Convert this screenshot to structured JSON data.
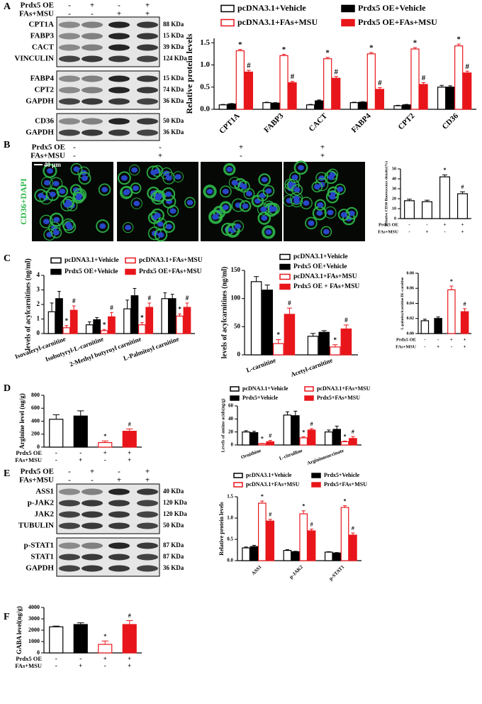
{
  "panel_labels": [
    "A",
    "B",
    "C",
    "D",
    "E",
    "F"
  ],
  "blots": [
    {
      "conditions": [
        {
          "name": "Prdx5 OE",
          "signs": [
            "-",
            "+",
            "-",
            "+"
          ]
        },
        {
          "name": "FAs+MSU",
          "signs": [
            "-",
            "-",
            "+",
            "+"
          ]
        }
      ],
      "groups": [
        [
          {
            "protein": "CPT1A",
            "size": "88 KDa"
          },
          {
            "protein": "FABP3",
            "size": "15 KDa"
          },
          {
            "protein": "CACT",
            "size": "39 KDa"
          },
          {
            "protein": "VINCULIN",
            "size": "124 KDa"
          }
        ],
        [
          {
            "protein": "FABP4",
            "size": "15 KDa"
          },
          {
            "protein": "CPT2",
            "size": "74 KDa"
          },
          {
            "protein": "GAPDH",
            "size": "36 KDa"
          }
        ],
        [
          {
            "protein": "CD36",
            "size": "50 KDa"
          },
          {
            "protein": "GAPDH",
            "size": "36 KDa"
          }
        ]
      ]
    },
    {
      "conditions": [
        {
          "name": "Prdx5 OE",
          "signs": [
            "-",
            "+",
            "-",
            "+"
          ]
        },
        {
          "name": "FAs+MSU",
          "signs": [
            "-",
            "-",
            "+",
            "+"
          ]
        }
      ],
      "groups": [
        [
          {
            "protein": "ASS1",
            "size": "40 KDa"
          },
          {
            "protein": "p-JAK2",
            "size": "120 KDa"
          },
          {
            "protein": "JAK2",
            "size": "120 KDa"
          },
          {
            "protein": "TUBULIN",
            "size": "50 KDa"
          }
        ],
        [
          {
            "protein": "p-STAT1",
            "size": "87 KDa"
          },
          {
            "protein": "STAT1",
            "size": "87 KDa"
          },
          {
            "protein": "GAPDH",
            "size": "36 KDa"
          }
        ]
      ]
    }
  ],
  "images": {
    "conditions": [
      {
        "name": "Prdx5 OE",
        "signs": [
          "-",
          "-",
          "+",
          "+"
        ]
      },
      {
        "name": "FAs+MSU",
        "signs": [
          "-",
          "+",
          "-",
          "+"
        ]
      }
    ],
    "stain": "CD36+DAPI",
    "scale": "40 μm"
  },
  "chart_data": [
    {
      "type": "bar",
      "ylabel": "Relative protein levels",
      "categories": [
        "CPT1A",
        "FABP3",
        "CACT",
        "FABP4",
        "CPT2",
        "CD36"
      ],
      "series": [
        {
          "name": "pcDNA3.1+Vehicle",
          "color": "#000000",
          "hollow": true,
          "values": [
            0.1,
            0.15,
            0.1,
            0.15,
            0.08,
            0.5
          ],
          "errors": [
            0.01,
            0.01,
            0.01,
            0.01,
            0.01,
            0.04
          ]
        },
        {
          "name": "Prdx5 OE+Vehicle",
          "color": "#000000",
          "hollow": false,
          "values": [
            0.12,
            0.14,
            0.19,
            0.16,
            0.1,
            0.5
          ],
          "errors": [
            0.01,
            0.01,
            0.02,
            0.01,
            0.01,
            0.03
          ]
        },
        {
          "name": "pcDNA3.1+FAs+MSU",
          "color": "#e8161b",
          "hollow": true,
          "values": [
            1.32,
            1.21,
            1.14,
            1.25,
            1.36,
            1.43
          ],
          "errors": [
            0.03,
            0.03,
            0.03,
            0.03,
            0.03,
            0.04
          ],
          "annotations": [
            "*",
            "*",
            "*",
            "*",
            "*",
            "*"
          ]
        },
        {
          "name": "Prdx5 OE+FAs+MSU",
          "color": "#e8161b",
          "hollow": false,
          "values": [
            0.84,
            0.6,
            0.7,
            0.45,
            0.56,
            0.82
          ],
          "errors": [
            0.04,
            0.03,
            0.04,
            0.04,
            0.04,
            0.04
          ],
          "annotations": [
            "#",
            "#",
            "#",
            "#",
            "#",
            "#"
          ]
        }
      ],
      "ylim": [
        0,
        1.6
      ],
      "yticks": [
        {
          "value": 0,
          "label": "0.0"
        },
        {
          "value": 0.5,
          "label": "0.5"
        },
        {
          "value": 1,
          "label": "1.0"
        },
        {
          "value": 1.5,
          "label": "1.5"
        }
      ]
    },
    {
      "type": "bar",
      "ylabel": "Relative CD36 fluorescence density(%)",
      "values": [
        18,
        17,
        42,
        25
      ],
      "errors": [
        1.5,
        1.5,
        2,
        2
      ],
      "colors": [
        "#000000",
        "#000000",
        "#000000",
        "#000000"
      ],
      "hollow": [
        true,
        true,
        true,
        true
      ],
      "annotations": [
        null,
        null,
        "*",
        "#"
      ],
      "conditions": [
        {
          "name": "Prdx5 OE",
          "signs": [
            "-",
            "-",
            "+",
            "+"
          ]
        },
        {
          "name": "FAs+MSU",
          "signs": [
            "-",
            "+",
            "-",
            "+"
          ]
        }
      ],
      "ylim": [
        0,
        50
      ],
      "yticks": [
        0,
        10,
        20,
        30,
        40,
        50
      ]
    },
    {
      "type": "bar",
      "ylabel": "levels of acylcarnitines (ng/ml)",
      "categories": [
        "Isovaleryl-carnitine",
        "Isobutyryl-L-carnitine",
        "2-Methyl butyroyl carnitine",
        "L-Palmitoyl carnitine"
      ],
      "series": [
        {
          "name": "pcDNA3.1+Vehicle",
          "color": "#000000",
          "hollow": true,
          "values": [
            1.5,
            0.6,
            1.7,
            2.4
          ],
          "errors": [
            0.6,
            0.2,
            0.6,
            0.4
          ]
        },
        {
          "name": "Prdx5 OE+Vehicle",
          "color": "#000000",
          "hollow": false,
          "values": [
            2.4,
            0.95,
            2.6,
            2.4
          ],
          "errors": [
            0.5,
            0.15,
            0.5,
            0.3
          ]
        },
        {
          "name": "pcDNA3.1+FAs+MSU",
          "color": "#e8161b",
          "hollow": true,
          "values": [
            0.4,
            0.2,
            0.6,
            1.2
          ],
          "errors": [
            0.15,
            0.08,
            0.15,
            0.15
          ],
          "annotations": [
            "*",
            "*",
            "*",
            "*"
          ]
        },
        {
          "name": "Prdx5 OE+FAs+MSU",
          "color": "#e8161b",
          "hollow": false,
          "values": [
            1.6,
            1.15,
            1.8,
            1.8
          ],
          "errors": [
            0.3,
            0.3,
            0.3,
            0.3
          ],
          "annotations": [
            "#",
            "#",
            "#",
            "#"
          ]
        }
      ],
      "ylim": [
        0,
        4
      ],
      "yticks": [
        0,
        1,
        2,
        3,
        4
      ]
    },
    {
      "type": "bar",
      "ylabel": "levels of acylcarnitines (ng/ml)",
      "categories": [
        "L-carnitine",
        "Acetyl-carnitine"
      ],
      "series": [
        {
          "name": "pcDNA3.1+Vehicle",
          "color": "#000000",
          "hollow": true,
          "values": [
            130,
            33
          ],
          "errors": [
            9,
            5
          ]
        },
        {
          "name": "Prdx5 OE+Vehicle",
          "color": "#000000",
          "hollow": false,
          "values": [
            115,
            40
          ],
          "errors": [
            9,
            3
          ]
        },
        {
          "name": "pcDNA3.1+FAs+MSU",
          "color": "#e8161b",
          "hollow": true,
          "values": [
            20,
            14
          ],
          "errors": [
            7,
            4
          ],
          "annotations": [
            "*",
            "*"
          ]
        },
        {
          "name": "Prdx5 OE + FAs+MSU",
          "color": "#e8161b",
          "hollow": false,
          "values": [
            72,
            46
          ],
          "errors": [
            11,
            7
          ],
          "annotations": [
            "#",
            "#"
          ]
        }
      ],
      "ylim": [
        0,
        150
      ],
      "yticks": [
        0,
        50,
        100,
        150
      ]
    },
    {
      "type": "bar",
      "ylabel": "L-palmitoylcarnitine/DL-carnitine",
      "values": [
        0.017,
        0.02,
        0.058,
        0.029
      ],
      "errors": [
        0.002,
        0.002,
        0.005,
        0.004
      ],
      "colors": [
        "#000000",
        "#000000",
        "#e8161b",
        "#e8161b"
      ],
      "hollow": [
        true,
        false,
        true,
        false
      ],
      "annotations": [
        null,
        null,
        "*",
        "#"
      ],
      "conditions": [
        {
          "name": "Prdx5 OE",
          "signs": [
            "-",
            "-",
            "+",
            "+"
          ]
        },
        {
          "name": "FAs+MSU",
          "signs": [
            "-",
            "+",
            "-",
            "+"
          ]
        }
      ],
      "ylim": [
        0,
        0.08
      ],
      "yticks": [
        {
          "value": 0,
          "label": "0.00"
        },
        {
          "value": 0.02,
          "label": "0.02"
        },
        {
          "value": 0.04,
          "label": "0.04"
        },
        {
          "value": 0.06,
          "label": "0.06"
        },
        {
          "value": 0.08,
          "label": "0.08"
        }
      ]
    },
    {
      "type": "bar",
      "ylabel": "Arginine level (ng/g)",
      "values": [
        430,
        480,
        70,
        245
      ],
      "errors": [
        70,
        80,
        25,
        35
      ],
      "colors": [
        "#000000",
        "#000000",
        "#e8161b",
        "#e8161b"
      ],
      "hollow": [
        true,
        false,
        true,
        false
      ],
      "annotations": [
        null,
        null,
        "*",
        "#"
      ],
      "conditions": [
        {
          "name": "Prdx5 OE",
          "signs": [
            "-",
            "-",
            "+",
            "+"
          ]
        },
        {
          "name": "FAs+MSU",
          "signs": [
            "-",
            "+",
            "-",
            "+"
          ]
        }
      ],
      "ylim": [
        0,
        800
      ],
      "yticks": [
        0,
        200,
        400,
        600,
        800
      ]
    },
    {
      "type": "bar",
      "ylabel": "Levels of amino acids(ng/g)",
      "categories": [
        "Ornithine",
        "L-citrulline",
        "Argininosuccinate"
      ],
      "series": [
        {
          "name": "pcDNA3.1+Vehicle",
          "color": "#000000",
          "hollow": true,
          "values": [
            20,
            46,
            20
          ],
          "errors": [
            2,
            5,
            3
          ]
        },
        {
          "name": "Prdx5+Vehicle",
          "color": "#000000",
          "hollow": false,
          "values": [
            19,
            45,
            24
          ],
          "errors": [
            2,
            7,
            5
          ]
        },
        {
          "name": "pcDNA3.1+FAs+MSU",
          "color": "#e8161b",
          "hollow": true,
          "values": [
            2,
            11,
            5
          ],
          "errors": [
            0.5,
            1.5,
            1
          ],
          "annotations": [
            "*",
            "*",
            "*"
          ]
        },
        {
          "name": "Prdx5+FAs+MSU",
          "color": "#e8161b",
          "hollow": false,
          "values": [
            5,
            23,
            10
          ],
          "errors": [
            2,
            2,
            3
          ],
          "annotations": [
            "#",
            "#",
            "#"
          ]
        }
      ],
      "ylim": [
        0,
        60
      ],
      "yticks": [
        0,
        20,
        40,
        60
      ]
    },
    {
      "type": "bar",
      "ylabel": "Relative protein levels",
      "categories": [
        "ASS1",
        "p-JAK2",
        "p-STAT1"
      ],
      "series": [
        {
          "name": "pcDNA3.1+Vehicle",
          "color": "#000000",
          "hollow": true,
          "values": [
            0.3,
            0.24,
            0.2
          ],
          "errors": [
            0.02,
            0.02,
            0.01
          ]
        },
        {
          "name": "Prdx5+Vehicle",
          "color": "#000000",
          "hollow": false,
          "values": [
            0.33,
            0.21,
            0.18
          ],
          "errors": [
            0.03,
            0.01,
            0.01
          ]
        },
        {
          "name": "pcDNA3.1+FAs+MSU",
          "color": "#e8161b",
          "hollow": true,
          "values": [
            1.35,
            1.1,
            1.25
          ],
          "errors": [
            0.05,
            0.07,
            0.04
          ],
          "annotations": [
            "*",
            "*",
            "*"
          ]
        },
        {
          "name": "Prdx5+FAs+MSU",
          "color": "#e8161b",
          "hollow": false,
          "values": [
            0.93,
            0.7,
            0.6
          ],
          "errors": [
            0.04,
            0.04,
            0.05
          ],
          "annotations": [
            "#",
            "#",
            "#"
          ]
        }
      ],
      "ylim": [
        0,
        1.5
      ],
      "yticks": [
        {
          "value": 0,
          "label": "0.0"
        },
        {
          "value": 0.5,
          "label": "0.5"
        },
        {
          "value": 1,
          "label": "1.0"
        },
        {
          "value": 1.5,
          "label": "1.5"
        }
      ]
    },
    {
      "type": "bar",
      "ylabel": "GABA level(ng/g)",
      "values": [
        2300,
        2500,
        750,
        2500
      ],
      "errors": [
        60,
        150,
        300,
        350
      ],
      "colors": [
        "#000000",
        "#000000",
        "#e8161b",
        "#e8161b"
      ],
      "hollow": [
        true,
        false,
        true,
        false
      ],
      "annotations": [
        null,
        null,
        "*",
        "#"
      ],
      "conditions": [
        {
          "name": "Prdx5 OE",
          "signs": [
            "-",
            "-",
            "+",
            "+"
          ]
        },
        {
          "name": "FAs+MSU",
          "signs": [
            "-",
            "+",
            "-",
            "+"
          ]
        }
      ],
      "ylim": [
        0,
        4000
      ],
      "yticks": [
        0,
        1000,
        2000,
        3000,
        4000
      ]
    }
  ]
}
